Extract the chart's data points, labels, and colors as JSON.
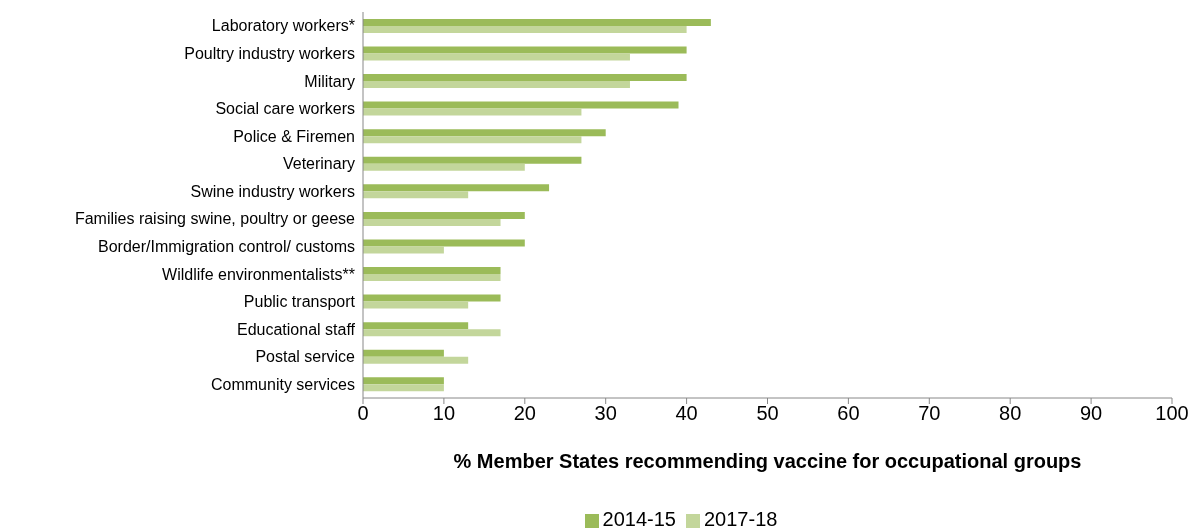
{
  "chart_data": {
    "type": "bar",
    "orientation": "horizontal",
    "xlabel": "% Member States recommending vaccine for occupational groups",
    "categories": [
      "Laboratory workers*",
      "Poultry industry workers",
      "Military",
      "Social care workers",
      "Police & Firemen",
      "Veterinary",
      "Swine industry workers",
      "Families raising swine, poultry or geese",
      "Border/Immigration control/ customs",
      "Wildlife environmentalists**",
      "Public transport",
      "Educational staff",
      "Postal service",
      "Community services"
    ],
    "series": [
      {
        "name": "2014-15",
        "color": "#9bbb59",
        "values": [
          43,
          40,
          40,
          39,
          30,
          27,
          23,
          20,
          20,
          17,
          17,
          13,
          10,
          10
        ]
      },
      {
        "name": "2017-18",
        "color": "#c3d69b",
        "values": [
          40,
          33,
          33,
          27,
          27,
          20,
          13,
          17,
          10,
          17,
          13,
          17,
          13,
          10
        ]
      }
    ],
    "xlim": [
      0,
      100
    ],
    "xticks": [
      0,
      10,
      20,
      30,
      40,
      50,
      60,
      70,
      80,
      90,
      100
    ],
    "legend": "bottom"
  }
}
